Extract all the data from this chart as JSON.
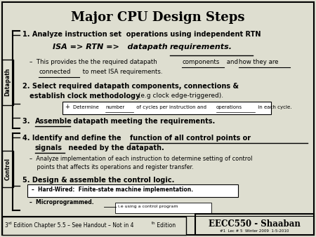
{
  "title": "Major CPU Design Steps",
  "bg_color": "#deded0",
  "border_color": "#000000",
  "title_fontsize": 13,
  "left_label_datapath": "Datapath",
  "left_label_control": "Control",
  "footer_right_main": "EECC550 - Shaaban",
  "footer_right_sub": "#1  Lec # 5  Winter 2009  1-5-2010",
  "item1": "1. Analyze instruction set  operations using independent RTN",
  "isa_line": "ISA => RTN =>   datapath ",
  "isa_req": "requirements.",
  "sub1a": "–  This provides the the required datapath ",
  "sub1b": "components",
  "sub1c": " and ",
  "sub1d": "how they are",
  "sub1e": "connected",
  "sub1f": " to meet ISA requirements.",
  "item2a": "2. Select required datapath components, connections &",
  "item2b": "   establish clock methodology",
  "item2c": " (e.g clock edge-triggered).",
  "note2": "Determine number of cycles per instruction and operations in each cycle.",
  "item3a": "3. ",
  "item3b": "Assemble",
  "item3c": " datapath meeting the requirements.",
  "item4a": "4. Identify and define the ",
  "item4b": "function of all control points or",
  "item4c": "signals",
  "item4d": " needed by the datapath.",
  "sub4": "–  Analyze implementation of each instruction to determine setting of control\n    points that affects its operations and register transfer.",
  "item5": "5. Design & assemble the control logic.",
  "hw": "–  Hard-Wired:  Finite-state machine implementation.",
  "micro": "–  Microprogrammed.",
  "micro_note": "i.e using a control program",
  "footer_left1": "3",
  "footer_left2": "rd",
  "footer_left3": " Edition Chapter 5.5 – See Handout – Not in 4",
  "footer_left4": "th",
  "footer_left5": " Edition"
}
